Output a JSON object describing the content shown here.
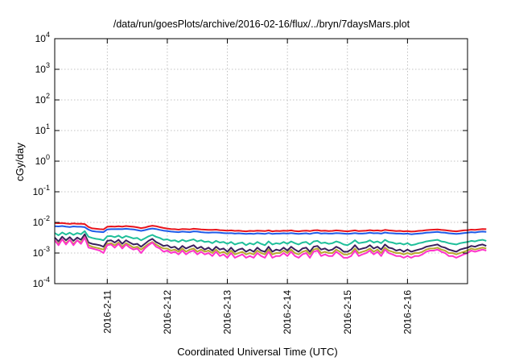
{
  "chart_data": {
    "type": "line",
    "title": "/data/run/goesPlots/archive/2016-02-16/flux/../bryn/7daysMars.plot",
    "xlabel": "Coordinated Universal Time (UTC)",
    "ylabel": "cGy/day",
    "yscale": "log",
    "ylim": [
      0.0001,
      10000
    ],
    "y_ticks": [
      {
        "value": 0.0001,
        "base": "10",
        "exp": "-4"
      },
      {
        "value": 0.001,
        "base": "10",
        "exp": "-3"
      },
      {
        "value": 0.01,
        "base": "10",
        "exp": "-2"
      },
      {
        "value": 0.1,
        "base": "10",
        "exp": "-1"
      },
      {
        "value": 1,
        "base": "10",
        "exp": "0"
      },
      {
        "value": 10,
        "base": "10",
        "exp": "1"
      },
      {
        "value": 100,
        "base": "10",
        "exp": "2"
      },
      {
        "value": 1000,
        "base": "10",
        "exp": "3"
      },
      {
        "value": 10000,
        "base": "10",
        "exp": "4"
      }
    ],
    "x_range": [
      "2016-02-10 03:00",
      "2016-02-17 00:00"
    ],
    "x_ticks": [
      "2016-2-11",
      "2016-2-12",
      "2016-2-13",
      "2016-2-14",
      "2016-2-15",
      "2016-2-16"
    ],
    "grid": true,
    "legend": "none",
    "series_interval_hours": 1.5,
    "series": [
      {
        "color": "#e8141c",
        "values": [
          0.0095,
          0.0094,
          0.0096,
          0.0092,
          0.0089,
          0.0093,
          0.009,
          0.0091,
          0.0088,
          0.0071,
          0.0064,
          0.0062,
          0.006,
          0.0059,
          0.0072,
          0.0074,
          0.0073,
          0.0075,
          0.0073,
          0.0076,
          0.0074,
          0.0072,
          0.0069,
          0.0065,
          0.0068,
          0.0074,
          0.0078,
          0.0075,
          0.007,
          0.0066,
          0.0063,
          0.0061,
          0.006,
          0.0058,
          0.0061,
          0.006,
          0.0059,
          0.0062,
          0.0061,
          0.0059,
          0.0058,
          0.0057,
          0.0057,
          0.0058,
          0.0056,
          0.0055,
          0.0054,
          0.0055,
          0.0053,
          0.0054,
          0.0052,
          0.0051,
          0.0053,
          0.0052,
          0.0054,
          0.0053,
          0.0052,
          0.0055,
          0.0051,
          0.0053,
          0.0052,
          0.0054,
          0.0053,
          0.0055,
          0.0052,
          0.0051,
          0.0053,
          0.0054,
          0.0052,
          0.0055,
          0.0056,
          0.0053,
          0.0054,
          0.0052,
          0.0053,
          0.0055,
          0.0054,
          0.0052,
          0.0051,
          0.0053,
          0.0055,
          0.0052,
          0.0053,
          0.0054,
          0.0056,
          0.0054,
          0.0055,
          0.0053,
          0.0057,
          0.0055,
          0.0054,
          0.0052,
          0.0053,
          0.0051,
          0.0052,
          0.005,
          0.0051,
          0.0053,
          0.0054,
          0.0056,
          0.0057,
          0.0058,
          0.0059,
          0.0057,
          0.0056,
          0.0054,
          0.0052,
          0.0051,
          0.0053,
          0.0055,
          0.0056,
          0.0058,
          0.0057,
          0.0059,
          0.0061,
          0.006
        ]
      },
      {
        "color": "#1f5be8",
        "values": [
          0.0075,
          0.0074,
          0.0076,
          0.0073,
          0.0071,
          0.0074,
          0.0072,
          0.0072,
          0.007,
          0.0058,
          0.0052,
          0.005,
          0.0049,
          0.0048,
          0.0059,
          0.006,
          0.006,
          0.0061,
          0.006,
          0.0062,
          0.006,
          0.0059,
          0.0056,
          0.0053,
          0.0056,
          0.006,
          0.0063,
          0.0061,
          0.0057,
          0.0054,
          0.0052,
          0.005,
          0.0049,
          0.0048,
          0.005,
          0.0049,
          0.0048,
          0.0051,
          0.005,
          0.0048,
          0.0047,
          0.0046,
          0.0047,
          0.0047,
          0.0046,
          0.0045,
          0.0044,
          0.0045,
          0.0043,
          0.0044,
          0.0043,
          0.0042,
          0.0043,
          0.0042,
          0.0044,
          0.0043,
          0.0042,
          0.0045,
          0.0042,
          0.0043,
          0.0043,
          0.0044,
          0.0043,
          0.0045,
          0.0043,
          0.0042,
          0.0043,
          0.0044,
          0.0042,
          0.0045,
          0.0046,
          0.0043,
          0.0044,
          0.0043,
          0.0043,
          0.0045,
          0.0044,
          0.0043,
          0.0042,
          0.0043,
          0.0045,
          0.0043,
          0.0043,
          0.0044,
          0.0046,
          0.0044,
          0.0045,
          0.0043,
          0.0047,
          0.0045,
          0.0044,
          0.0043,
          0.0043,
          0.0042,
          0.0043,
          0.0041,
          0.0042,
          0.0043,
          0.0044,
          0.0046,
          0.0047,
          0.0048,
          0.0049,
          0.0047,
          0.0046,
          0.0044,
          0.0043,
          0.0042,
          0.0043,
          0.0045,
          0.0046,
          0.0048,
          0.0047,
          0.0049,
          0.005,
          0.0049
        ]
      },
      {
        "color": "#1fbf9a",
        "values": [
          0.0045,
          0.0038,
          0.0047,
          0.004,
          0.0046,
          0.0039,
          0.0045,
          0.0041,
          0.0052,
          0.0034,
          0.0031,
          0.0029,
          0.0028,
          0.0026,
          0.0035,
          0.0036,
          0.0033,
          0.0037,
          0.0031,
          0.0036,
          0.0033,
          0.003,
          0.0031,
          0.0026,
          0.003,
          0.0035,
          0.0039,
          0.0034,
          0.0031,
          0.0027,
          0.0028,
          0.0025,
          0.0026,
          0.0023,
          0.0027,
          0.0024,
          0.0026,
          0.0028,
          0.0024,
          0.0026,
          0.0023,
          0.0024,
          0.0021,
          0.0025,
          0.0022,
          0.0023,
          0.002,
          0.0023,
          0.0019,
          0.0021,
          0.0022,
          0.0018,
          0.0021,
          0.0019,
          0.0023,
          0.002,
          0.0018,
          0.0024,
          0.0019,
          0.0021,
          0.002,
          0.0023,
          0.002,
          0.0024,
          0.0021,
          0.0019,
          0.0022,
          0.0023,
          0.0019,
          0.0024,
          0.0025,
          0.0021,
          0.0022,
          0.002,
          0.0021,
          0.0024,
          0.0022,
          0.0019,
          0.0018,
          0.0021,
          0.0026,
          0.0021,
          0.0022,
          0.0023,
          0.0026,
          0.0022,
          0.0024,
          0.0021,
          0.0027,
          0.0023,
          0.0022,
          0.002,
          0.0021,
          0.0019,
          0.0021,
          0.0018,
          0.0019,
          0.0021,
          0.0022,
          0.0024,
          0.0025,
          0.0026,
          0.0027,
          0.0024,
          0.0023,
          0.0021,
          0.002,
          0.0019,
          0.0021,
          0.0022,
          0.0023,
          0.0025,
          0.0024,
          0.0026,
          0.0027,
          0.0025
        ]
      },
      {
        "color": "#3a1f5c",
        "values": [
          0.0032,
          0.0024,
          0.0034,
          0.0026,
          0.0033,
          0.0025,
          0.0032,
          0.0027,
          0.0041,
          0.0022,
          0.002,
          0.0019,
          0.0018,
          0.0016,
          0.0025,
          0.0026,
          0.0022,
          0.0027,
          0.002,
          0.0026,
          0.0022,
          0.0019,
          0.002,
          0.0016,
          0.002,
          0.0025,
          0.0029,
          0.0023,
          0.002,
          0.0017,
          0.0018,
          0.0015,
          0.0016,
          0.0013,
          0.0017,
          0.0014,
          0.0016,
          0.0018,
          0.0014,
          0.0016,
          0.0013,
          0.0015,
          0.0012,
          0.0016,
          0.0013,
          0.0014,
          0.0011,
          0.0015,
          0.0011,
          0.0013,
          0.0014,
          0.0011,
          0.0013,
          0.0011,
          0.0015,
          0.0012,
          0.0011,
          0.0016,
          0.0011,
          0.0013,
          0.0012,
          0.0015,
          0.0012,
          0.0016,
          0.0013,
          0.0011,
          0.0014,
          0.0015,
          0.0011,
          0.0016,
          0.0017,
          0.0013,
          0.0014,
          0.0012,
          0.0013,
          0.0016,
          0.0014,
          0.0011,
          0.0011,
          0.0013,
          0.0018,
          0.0013,
          0.0014,
          0.0015,
          0.0018,
          0.0014,
          0.0016,
          0.0013,
          0.0019,
          0.0015,
          0.0014,
          0.0012,
          0.0013,
          0.0011,
          0.0013,
          0.0011,
          0.0012,
          0.0013,
          0.0014,
          0.0016,
          0.0017,
          0.0018,
          0.0019,
          0.0016,
          0.0015,
          0.0013,
          0.0012,
          0.0011,
          0.0013,
          0.0014,
          0.0015,
          0.0017,
          0.0016,
          0.0018,
          0.0019,
          0.0017
        ]
      },
      {
        "color": "#b8a830",
        "values": [
          0.0026,
          0.002,
          0.0028,
          0.0021,
          0.0027,
          0.002,
          0.0026,
          0.0022,
          0.0033,
          0.0018,
          0.0016,
          0.0015,
          0.0014,
          0.0013,
          0.002,
          0.0021,
          0.0018,
          0.0022,
          0.0016,
          0.0021,
          0.0018,
          0.0015,
          0.0016,
          0.0013,
          0.0016,
          0.002,
          0.0023,
          0.0019,
          0.0016,
          0.0014,
          0.0014,
          0.0012,
          0.0013,
          0.0011,
          0.0014,
          0.0011,
          0.0013,
          0.0014,
          0.0011,
          0.0013,
          0.0011,
          0.0012,
          0.001,
          0.0013,
          0.001,
          0.0011,
          0.0009,
          0.0012,
          0.0009,
          0.001,
          0.0011,
          0.0009,
          0.001,
          0.0009,
          0.0012,
          0.001,
          0.0009,
          0.0013,
          0.0009,
          0.001,
          0.001,
          0.0012,
          0.001,
          0.0013,
          0.001,
          0.0009,
          0.0011,
          0.0012,
          0.0009,
          0.0013,
          0.0014,
          0.001,
          0.0011,
          0.001,
          0.001,
          0.0013,
          0.0011,
          0.0009,
          0.0009,
          0.001,
          0.0014,
          0.001,
          0.0011,
          0.0012,
          0.0014,
          0.0011,
          0.0013,
          0.001,
          0.0015,
          0.0012,
          0.0011,
          0.001,
          0.001,
          0.0009,
          0.001,
          0.0009,
          0.001,
          0.001,
          0.0011,
          0.0013,
          0.0014,
          0.0014,
          0.0015,
          0.0013,
          0.0012,
          0.001,
          0.001,
          0.0009,
          0.001,
          0.0011,
          0.0012,
          0.0014,
          0.0013,
          0.0014,
          0.0015,
          0.0014
        ]
      },
      {
        "color": "#ff33cc",
        "values": [
          0.0026,
          0.0018,
          0.0028,
          0.0019,
          0.0027,
          0.0018,
          0.0026,
          0.002,
          0.0032,
          0.0015,
          0.0014,
          0.0013,
          0.0012,
          0.001,
          0.0018,
          0.0019,
          0.0015,
          0.002,
          0.0014,
          0.0019,
          0.0015,
          0.0013,
          0.0014,
          0.001,
          0.0014,
          0.0018,
          0.0022,
          0.0016,
          0.0014,
          0.0011,
          0.0012,
          0.001,
          0.0011,
          0.0009,
          0.0012,
          0.0009,
          0.0011,
          0.0012,
          0.0009,
          0.0011,
          0.0009,
          0.001,
          0.0008,
          0.0011,
          0.0008,
          0.0009,
          0.0007,
          0.001,
          0.0007,
          0.0008,
          0.0009,
          0.0007,
          0.0008,
          0.0007,
          0.001,
          0.0008,
          0.0007,
          0.0011,
          0.0007,
          0.0008,
          0.0008,
          0.001,
          0.0008,
          0.0011,
          0.0008,
          0.0007,
          0.0009,
          0.001,
          0.0007,
          0.0011,
          0.0012,
          0.0008,
          0.0009,
          0.0008,
          0.0008,
          0.0011,
          0.0009,
          0.0007,
          0.0007,
          0.0008,
          0.0012,
          0.0008,
          0.0009,
          0.001,
          0.0012,
          0.0009,
          0.0011,
          0.0008,
          0.0013,
          0.001,
          0.0009,
          0.0008,
          0.0008,
          0.0007,
          0.0008,
          0.0007,
          0.0008,
          0.0008,
          0.0009,
          0.0011,
          0.0012,
          0.0012,
          0.0013,
          0.0011,
          0.001,
          0.0008,
          0.0008,
          0.0007,
          0.0008,
          0.0009,
          0.001,
          0.0012,
          0.0011,
          0.0012,
          0.0013,
          0.0012
        ]
      }
    ]
  }
}
